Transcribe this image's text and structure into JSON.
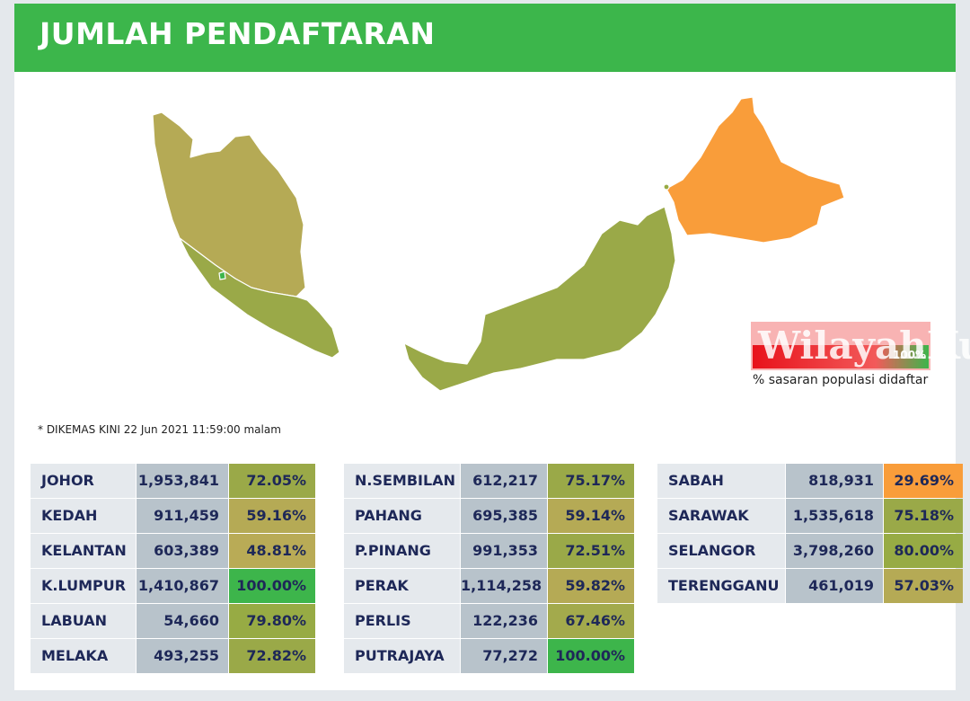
{
  "header": {
    "title": "JUMLAH PENDAFTARAN"
  },
  "note": "* DIKEMAS KINI 22 Jun 2021 11:59:00 malam",
  "legend": {
    "watermark": "WilayahKu",
    "max_label": "100%",
    "caption": "% sasaran populasi didaftar"
  },
  "tables": [
    {
      "rows": [
        {
          "state": "JOHOR",
          "count": "1,953,841",
          "percent": "72.05%",
          "color": "#9aa948"
        },
        {
          "state": "KEDAH",
          "count": "911,459",
          "percent": "59.16%",
          "color": "#b5aa55"
        },
        {
          "state": "KELANTAN",
          "count": "603,389",
          "percent": "48.81%",
          "color": "#b9ab56"
        },
        {
          "state": "K.LUMPUR",
          "count": "1,410,867",
          "percent": "100.00%",
          "color": "#3db54b"
        },
        {
          "state": "LABUAN",
          "count": "54,660",
          "percent": "79.80%",
          "color": "#97ab44"
        },
        {
          "state": "MELAKA",
          "count": "493,255",
          "percent": "72.82%",
          "color": "#9aa948"
        }
      ]
    },
    {
      "rows": [
        {
          "state": "N.SEMBILAN",
          "count": "612,217",
          "percent": "75.17%",
          "color": "#9aa948"
        },
        {
          "state": "PAHANG",
          "count": "695,385",
          "percent": "59.14%",
          "color": "#b5aa55"
        },
        {
          "state": "P.PINANG",
          "count": "991,353",
          "percent": "72.51%",
          "color": "#9aa948"
        },
        {
          "state": "PERAK",
          "count": "1,114,258",
          "percent": "59.82%",
          "color": "#b5aa55"
        },
        {
          "state": "PERLIS",
          "count": "122,236",
          "percent": "67.46%",
          "color": "#a3aa4c"
        },
        {
          "state": "PUTRAJAYA",
          "count": "77,272",
          "percent": "100.00%",
          "color": "#3db54b"
        }
      ]
    },
    {
      "rows": [
        {
          "state": "SABAH",
          "count": "818,931",
          "percent": "29.69%",
          "color": "#f99d3a"
        },
        {
          "state": "SARAWAK",
          "count": "1,535,618",
          "percent": "75.18%",
          "color": "#9aa948"
        },
        {
          "state": "SELANGOR",
          "count": "3,798,260",
          "percent": "80.00%",
          "color": "#97ab44"
        },
        {
          "state": "TERENGGANU",
          "count": "461,019",
          "percent": "57.03%",
          "color": "#b5aa55"
        }
      ]
    }
  ]
}
